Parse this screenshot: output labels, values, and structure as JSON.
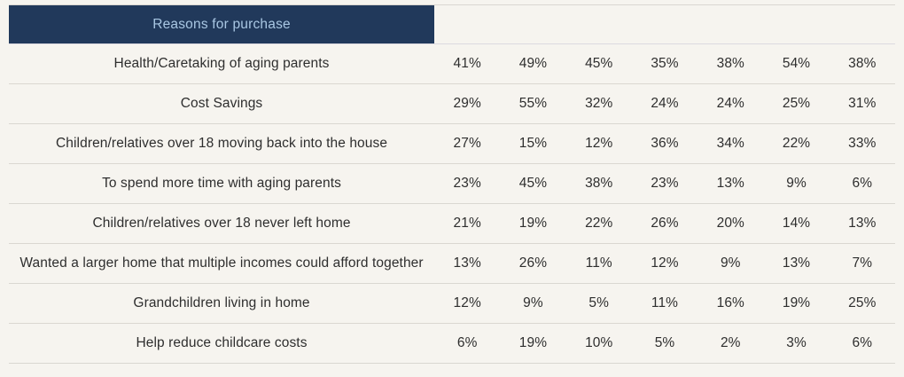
{
  "header": {
    "title": "Reasons for purchase",
    "value_column_count": 7
  },
  "colors": {
    "header_background": "#21395b",
    "header_text": "#a9c7e3",
    "page_background": "#f6f4ef",
    "row_separator": "#dad7d1",
    "body_text": "#2e2e2e"
  },
  "chart_data": {
    "type": "table",
    "title": "Reasons for purchase",
    "row_header_label": "Reasons for purchase",
    "column_headers": [
      "",
      "",
      "",
      "",
      "",
      "",
      ""
    ],
    "rows": [
      {
        "label": "Health/Caretaking of aging parents",
        "values": [
          "41%",
          "49%",
          "45%",
          "35%",
          "38%",
          "54%",
          "38%"
        ]
      },
      {
        "label": "Cost Savings",
        "values": [
          "29%",
          "55%",
          "32%",
          "24%",
          "24%",
          "25%",
          "31%"
        ]
      },
      {
        "label": "Children/relatives over 18 moving back into the house",
        "values": [
          "27%",
          "15%",
          "12%",
          "36%",
          "34%",
          "22%",
          "33%"
        ]
      },
      {
        "label": "To spend more time with aging parents",
        "values": [
          "23%",
          "45%",
          "38%",
          "23%",
          "13%",
          "9%",
          "6%"
        ]
      },
      {
        "label": "Children/relatives over 18 never left home",
        "values": [
          "21%",
          "19%",
          "22%",
          "26%",
          "20%",
          "14%",
          "13%"
        ]
      },
      {
        "label": "Wanted a larger home that multiple incomes could afford together",
        "values": [
          "13%",
          "26%",
          "11%",
          "12%",
          "9%",
          "13%",
          "7%"
        ]
      },
      {
        "label": "Grandchildren living in home",
        "values": [
          "12%",
          "9%",
          "5%",
          "11%",
          "16%",
          "19%",
          "25%"
        ]
      },
      {
        "label": "Help reduce childcare costs",
        "values": [
          "6%",
          "19%",
          "10%",
          "5%",
          "2%",
          "3%",
          "6%"
        ]
      }
    ]
  }
}
